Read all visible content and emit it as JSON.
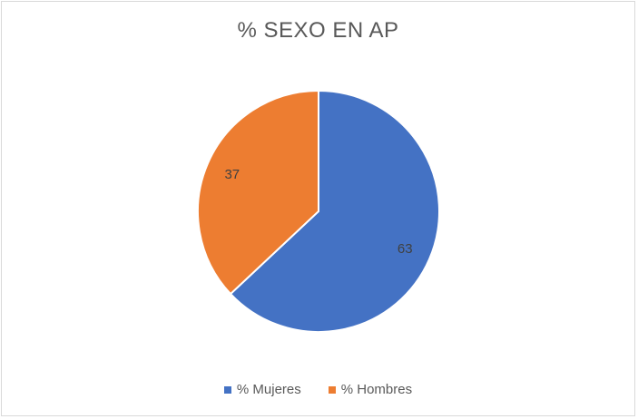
{
  "chart_data": {
    "type": "pie",
    "title": "% SEXO EN AP",
    "categories": [
      "% Mujeres",
      "% Hombres"
    ],
    "values": [
      63,
      37
    ],
    "colors": [
      "#4472c4",
      "#ed7d31"
    ],
    "data_labels": [
      "63",
      "37"
    ],
    "legend_position": "bottom",
    "start_angle_deg": 0,
    "direction": "clockwise"
  }
}
